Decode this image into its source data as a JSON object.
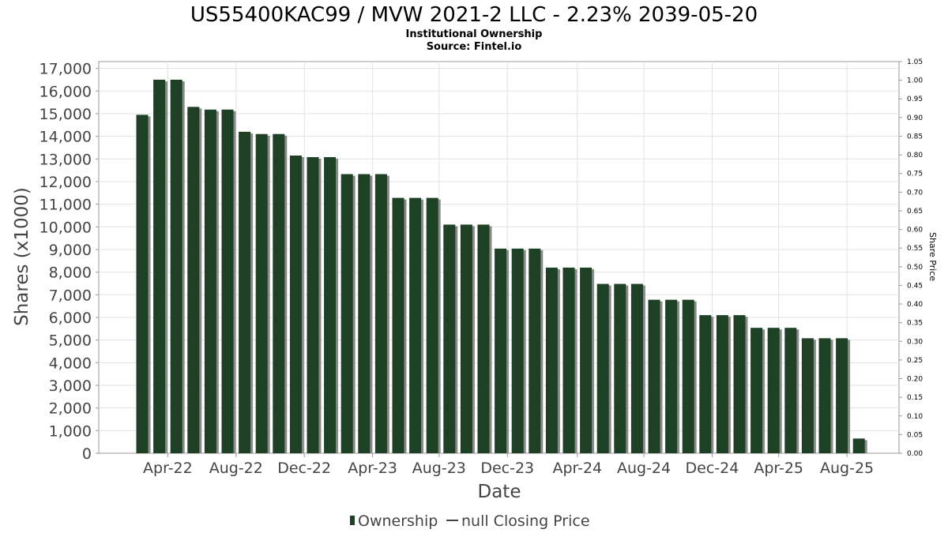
{
  "chart_data": {
    "type": "bar",
    "title": "US55400KAC99 / MVW 2021-2 LLC - 2.23% 2039-05-20",
    "subtitle_lines": [
      "Institutional Ownership",
      "Source: Fintel.io"
    ],
    "xlabel": "Date",
    "ylabel": "Shares (x1000)",
    "y2label": "Share Price",
    "ylim": [
      0,
      17300
    ],
    "y2lim": [
      0,
      1.05
    ],
    "yticks": [
      "0",
      "1,000",
      "2,000",
      "3,000",
      "4,000",
      "5,000",
      "6,000",
      "7,000",
      "8,000",
      "9,000",
      "10,000",
      "11,000",
      "12,000",
      "13,000",
      "14,000",
      "15,000",
      "16,000",
      "17,000"
    ],
    "y2ticks": [
      "0.00",
      "0.05",
      "0.10",
      "0.15",
      "0.20",
      "0.25",
      "0.30",
      "0.35",
      "0.40",
      "0.45",
      "0.50",
      "0.55",
      "0.60",
      "0.65",
      "0.70",
      "0.75",
      "0.80",
      "0.85",
      "0.90",
      "0.95",
      "1.00",
      "1.05"
    ],
    "xticks": [
      {
        "label": "Apr-22",
        "index": 1.5
      },
      {
        "label": "Aug-22",
        "index": 5.5
      },
      {
        "label": "Dec-22",
        "index": 9.5
      },
      {
        "label": "Apr-23",
        "index": 13.5
      },
      {
        "label": "Aug-23",
        "index": 17.4
      },
      {
        "label": "Dec-23",
        "index": 21.4
      },
      {
        "label": "Apr-24",
        "index": 25.5
      },
      {
        "label": "Aug-24",
        "index": 29.4
      },
      {
        "label": "Dec-24",
        "index": 33.4
      },
      {
        "label": "Apr-25",
        "index": 37.3
      },
      {
        "label": "Aug-25",
        "index": 41.3
      }
    ],
    "grid": true,
    "legend_placement": "bottom",
    "bar_color": "#1e4024",
    "shadow_color": "#8a8a8a",
    "series": [
      {
        "name": "Ownership",
        "values": [
          14950,
          16500,
          16500,
          15300,
          15180,
          15180,
          14200,
          14100,
          14100,
          13150,
          13080,
          13080,
          12330,
          12330,
          12330,
          11280,
          11280,
          11280,
          10100,
          10100,
          10100,
          9040,
          9040,
          9040,
          8200,
          8200,
          8200,
          7480,
          7480,
          7480,
          6780,
          6780,
          6780,
          6100,
          6100,
          6100,
          5540,
          5540,
          5540,
          5080,
          5080,
          5080,
          650
        ]
      }
    ],
    "legend": [
      {
        "label": "Ownership",
        "kind": "bar"
      },
      {
        "label": "null Closing Price",
        "kind": "line"
      }
    ]
  }
}
